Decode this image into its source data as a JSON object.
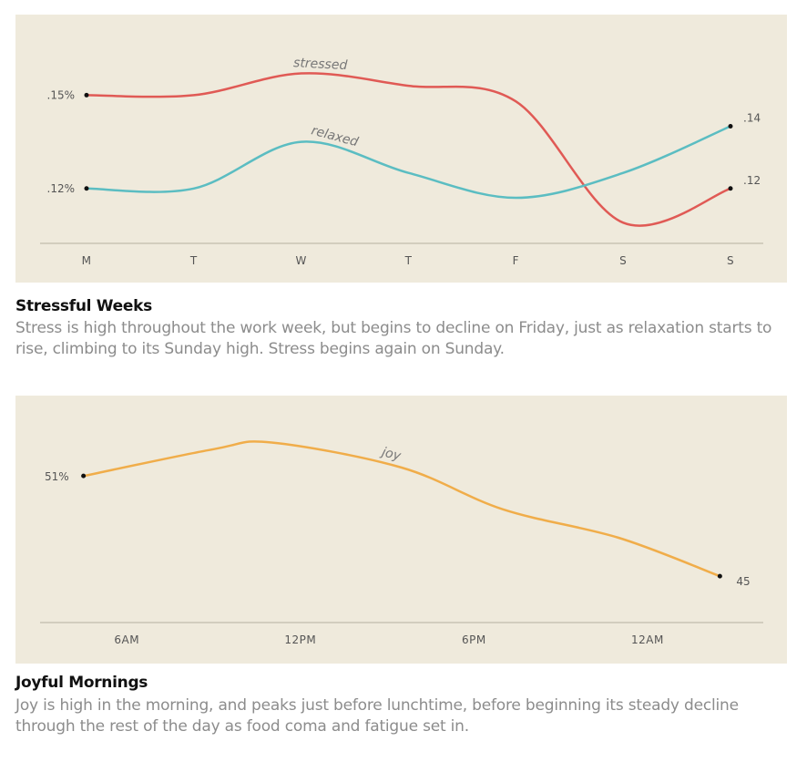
{
  "chart_data": [
    {
      "type": "line",
      "title": "Stressful Weeks",
      "caption": "Stress is high throughout the work week, but begins to decline on Friday, just as relaxation starts to rise, climbing to its Sunday high. Stress begins again on Sunday.",
      "categories": [
        "M",
        "T",
        "W",
        "T",
        "F",
        "S",
        "S"
      ],
      "ylim": [
        0.105,
        0.163
      ],
      "series": [
        {
          "name": "stressed",
          "color": "#e05a55",
          "values": [
            0.15,
            0.15,
            0.157,
            0.153,
            0.148,
            0.109,
            0.12
          ],
          "start_label": ".15%",
          "end_label": ".12"
        },
        {
          "name": "relaxed",
          "color": "#5bbdc2",
          "values": [
            0.12,
            0.12,
            0.135,
            0.125,
            0.117,
            0.125,
            0.14
          ],
          "start_label": ".12%",
          "end_label": ".14"
        }
      ]
    },
    {
      "type": "line",
      "title": "Joyful Mornings",
      "caption": "Joy is high in the morning, and peaks just before lunchtime, before beginning its steady decline through the rest of the day as food coma and fatigue set in.",
      "tick_labels": [
        "6AM",
        "12PM",
        "6PM",
        "12AM"
      ],
      "xlim": [
        3,
        28
      ],
      "ylim": [
        43.7,
        53.3
      ],
      "series": [
        {
          "name": "joy",
          "color": "#f0ad4a",
          "points": [
            [
              4.5,
              51
            ],
            [
              9,
              52.6
            ],
            [
              11,
              53
            ],
            [
              15.5,
              51.5
            ],
            [
              19,
              49
            ],
            [
              23,
              47.3
            ],
            [
              26.5,
              45
            ]
          ],
          "start_label": "51%",
          "end_label": "45"
        }
      ]
    }
  ]
}
